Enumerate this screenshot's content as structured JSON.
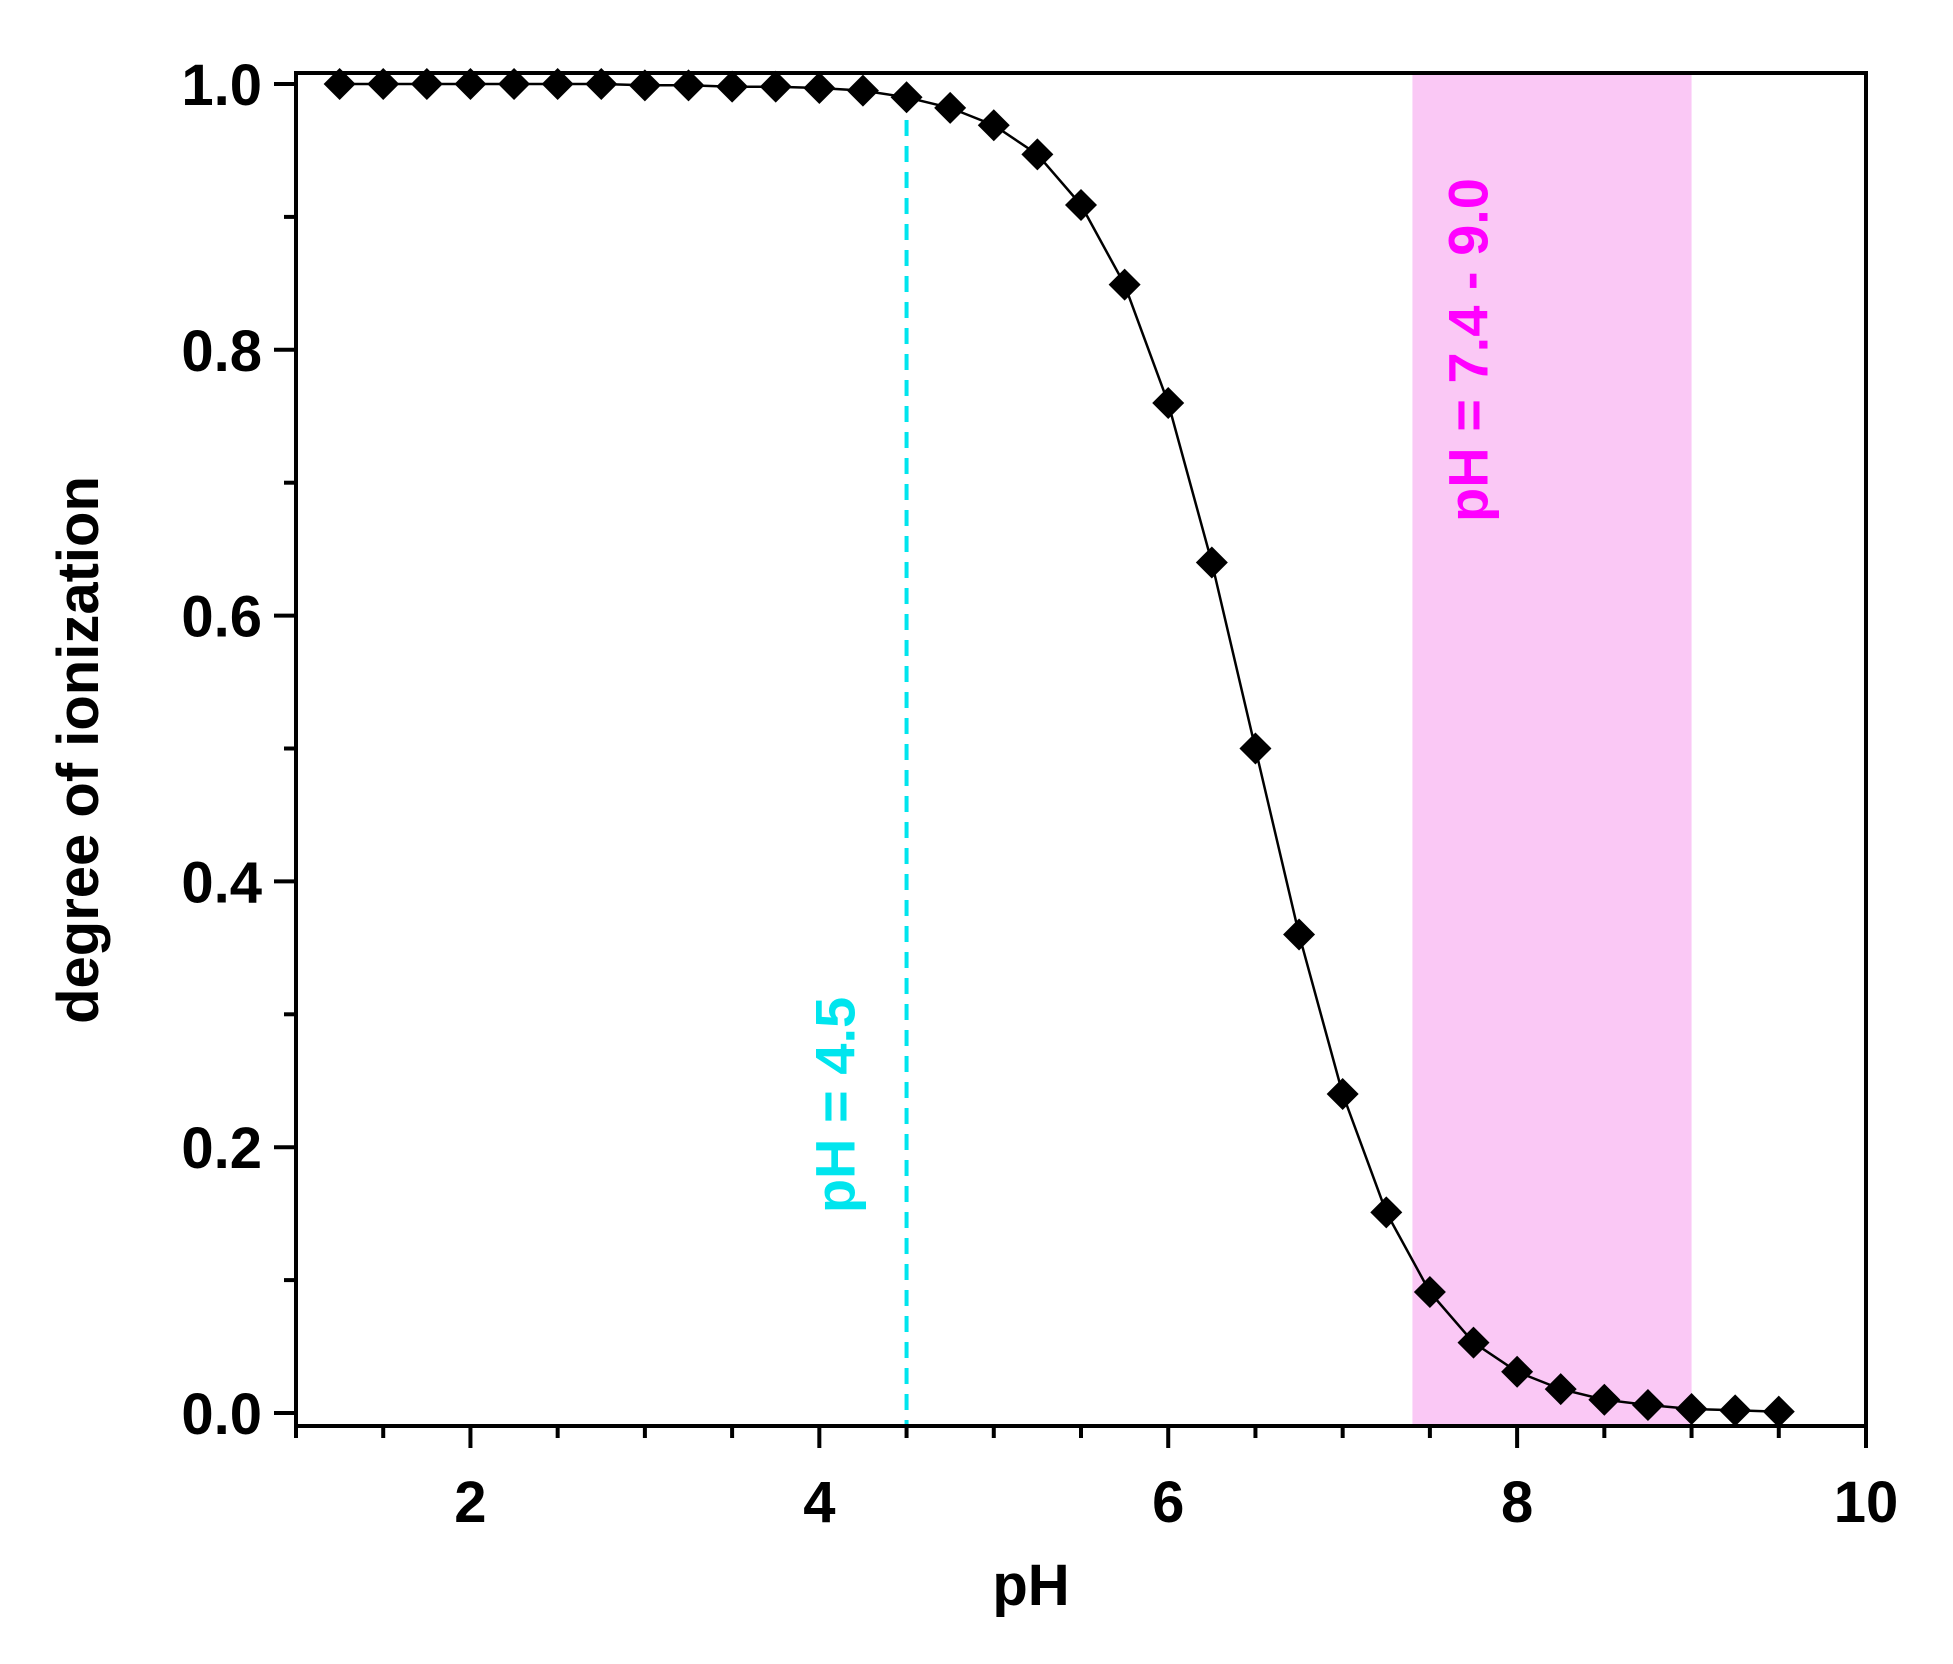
{
  "chart_data": {
    "type": "line",
    "title": "",
    "xlabel": "pH",
    "ylabel": "degree of ionization",
    "xlim": [
      1,
      10
    ],
    "ylim": [
      0,
      1.0
    ],
    "x_ticks": [
      2,
      4,
      6,
      8,
      10
    ],
    "x_tick_labels": [
      "2",
      "4",
      "6",
      "8",
      "10"
    ],
    "y_ticks": [
      0,
      0.2,
      0.4,
      0.6,
      0.8,
      1.0
    ],
    "y_tick_labels": [
      "0.0",
      "0.2",
      "0.4",
      "0.6",
      "0.8",
      "1.0"
    ],
    "grid": false,
    "series": [
      {
        "name": "degree of ionization",
        "marker": "diamond",
        "color": "#000000",
        "x": [
          1.25,
          1.5,
          1.75,
          2.0,
          2.25,
          2.5,
          2.75,
          3.0,
          3.25,
          3.5,
          3.75,
          4.0,
          4.25,
          4.5,
          4.75,
          5.0,
          5.25,
          5.5,
          5.75,
          6.0,
          6.25,
          6.5,
          6.75,
          7.0,
          7.25,
          7.5,
          7.75,
          8.0,
          8.25,
          8.5,
          8.75,
          9.0,
          9.25,
          9.5
        ],
        "values": [
          1.0,
          1.0,
          1.0,
          1.0,
          1.0,
          1.0,
          1.0,
          0.999,
          0.999,
          0.998,
          0.998,
          0.997,
          0.995,
          0.99,
          0.982,
          0.969,
          0.947,
          0.909,
          0.849,
          0.76,
          0.64,
          0.5,
          0.36,
          0.24,
          0.151,
          0.091,
          0.053,
          0.031,
          0.018,
          0.01,
          0.006,
          0.003,
          0.002,
          0.001
        ]
      }
    ],
    "annotations": [
      {
        "type": "vline",
        "x": 4.5,
        "style": "dashed",
        "color": "#00e5ee",
        "label": "pH = 4.5"
      },
      {
        "type": "vspan",
        "x_start": 7.4,
        "x_end": 9.0,
        "color": "#fac8f5",
        "label": "pH = 7.4 - 9.0",
        "label_color": "#ff00ff"
      }
    ]
  }
}
